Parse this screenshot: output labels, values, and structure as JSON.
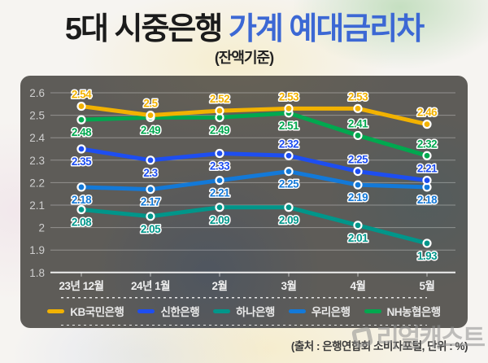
{
  "title": {
    "black": "5대 시중은행",
    "blue": "가계 예대금리차",
    "subtitle": "(잔액기준)"
  },
  "footer": {
    "source": "(출처 : 은행연합회 소비자포털, 단위 : %)"
  },
  "watermark": {
    "text": "리얼캐스트"
  },
  "colors": {
    "title_blue": "#3c68d4",
    "panel_background": "#5e5c58",
    "kb_yellow": "#f2b200",
    "shinhan_blue": "#1e4ef0",
    "hana_teal": "#00968a",
    "woori_blue": "#1379d8",
    "nh_green": "#00a84f"
  },
  "chart_data": {
    "type": "line",
    "categories": [
      "23년 12월",
      "24년 1월",
      "2월",
      "3월",
      "4월",
      "5월"
    ],
    "series": [
      {
        "name": "KB국민은행",
        "color": "#f2b200",
        "values": [
          2.54,
          2.5,
          2.52,
          2.53,
          2.53,
          2.46
        ],
        "label_pos": [
          "above",
          "above",
          "above",
          "above",
          "above",
          "above"
        ]
      },
      {
        "name": "신한은행",
        "color": "#1e4ef0",
        "values": [
          2.35,
          2.3,
          2.33,
          2.32,
          2.25,
          2.21
        ],
        "label_pos": [
          "below",
          "below",
          "below",
          "above",
          "above",
          "above"
        ]
      },
      {
        "name": "하나은행",
        "color": "#00968a",
        "values": [
          2.08,
          2.05,
          2.09,
          2.09,
          2.01,
          1.93
        ],
        "label_pos": [
          "below",
          "below",
          "below",
          "below",
          "below",
          "below"
        ]
      },
      {
        "name": "우리은행",
        "color": "#1379d8",
        "values": [
          2.18,
          2.17,
          2.21,
          2.25,
          2.19,
          2.18
        ],
        "label_pos": [
          "below",
          "below",
          "below",
          "below",
          "below",
          "below"
        ]
      },
      {
        "name": "NH농협은행",
        "color": "#00a84f",
        "values": [
          2.48,
          2.49,
          2.49,
          2.51,
          2.41,
          2.32
        ],
        "label_pos": [
          "below",
          "below",
          "below",
          "below",
          "above",
          "above"
        ]
      }
    ],
    "draw_order": [
      2,
      3,
      1,
      4,
      0
    ],
    "ylim": [
      1.8,
      2.6
    ],
    "yticks": [
      "2.6",
      "2.5",
      "2.4",
      "2.3",
      "2.2",
      "2.1",
      "2",
      "1.9",
      "1.8"
    ],
    "grid": true,
    "legend_position": "bottom",
    "unit": "%"
  }
}
